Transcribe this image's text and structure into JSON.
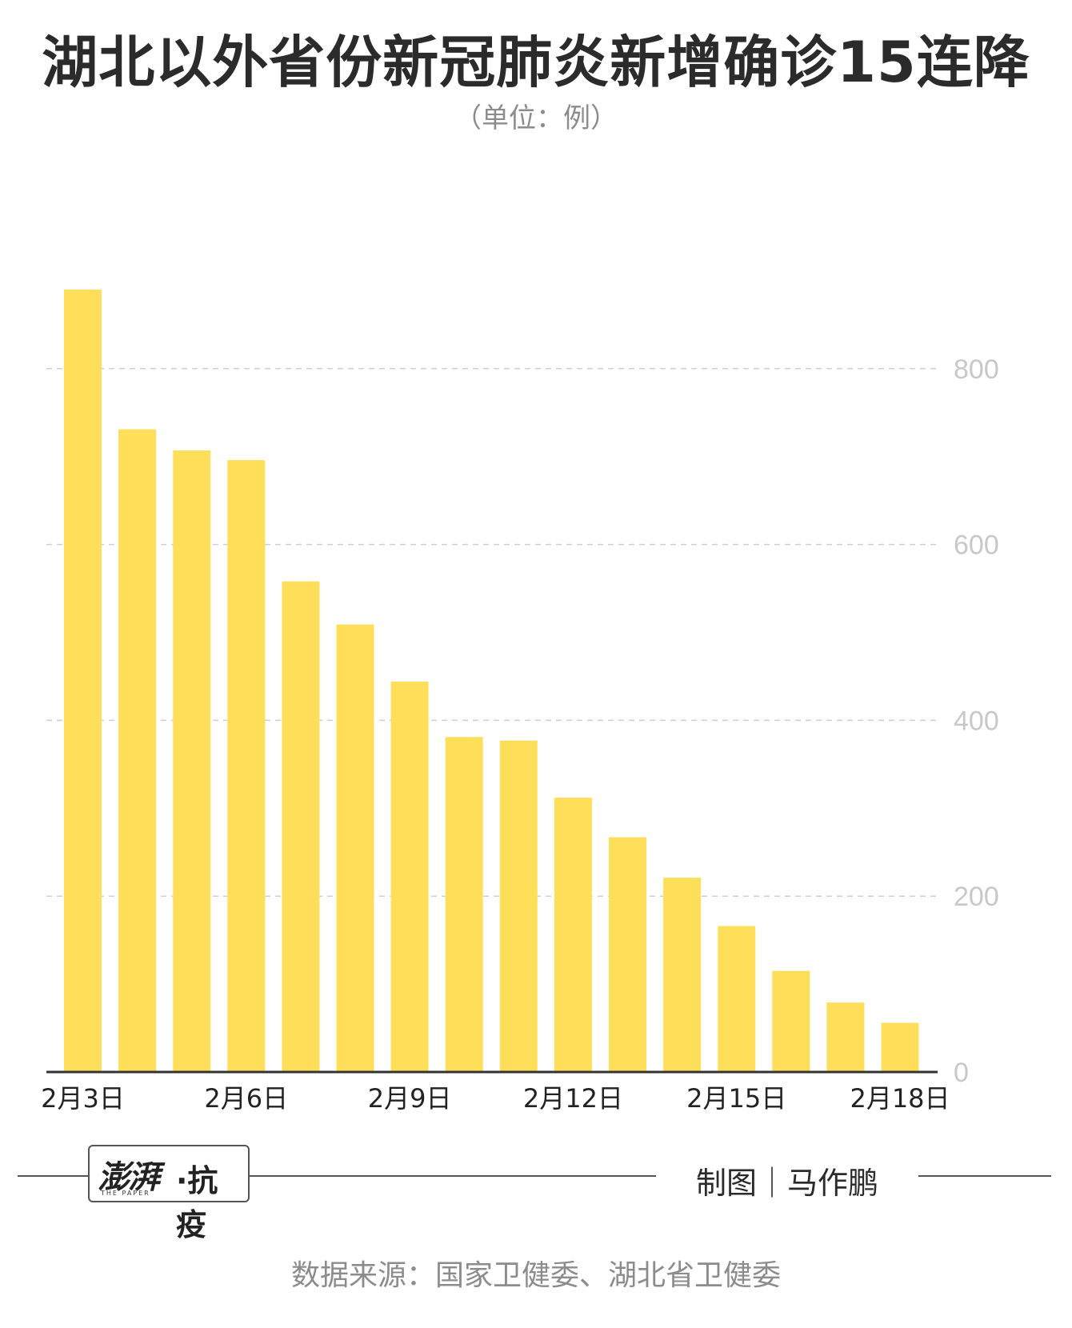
{
  "header": {
    "title": "湖北以外省份新冠肺炎新增确诊15连降",
    "unit": "（单位：例）"
  },
  "footer": {
    "brand": "澎湃",
    "brand_sub": "THE PAPER",
    "tag": "·抗疫",
    "credit": "制图｜马作鹏",
    "source": "数据来源：国家卫健委、湖北省卫健委"
  },
  "colors": {
    "bar": "#FFDF5A",
    "grid": "#cfcfcf",
    "tick_label": "#c8c8c8",
    "axis": "#333333"
  },
  "chart_data": {
    "type": "bar",
    "categories": [
      "2月3日",
      "2月4日",
      "2月5日",
      "2月6日",
      "2月7日",
      "2月8日",
      "2月9日",
      "2月10日",
      "2月11日",
      "2月12日",
      "2月13日",
      "2月14日",
      "2月15日",
      "2月16日",
      "2月17日",
      "2月18日"
    ],
    "values": [
      890,
      731,
      707,
      696,
      558,
      509,
      444,
      381,
      377,
      312,
      267,
      221,
      166,
      115,
      79,
      56
    ],
    "x_tick_labels": [
      "2月3日",
      "",
      "",
      "2月6日",
      "",
      "",
      "2月9日",
      "",
      "",
      "2月12日",
      "",
      "",
      "2月15日",
      "",
      "",
      "2月18日"
    ],
    "y_ticks": [
      0,
      200,
      400,
      600,
      800
    ],
    "ylim": [
      0,
      900
    ],
    "grid": true,
    "y_axis_position": "right"
  }
}
